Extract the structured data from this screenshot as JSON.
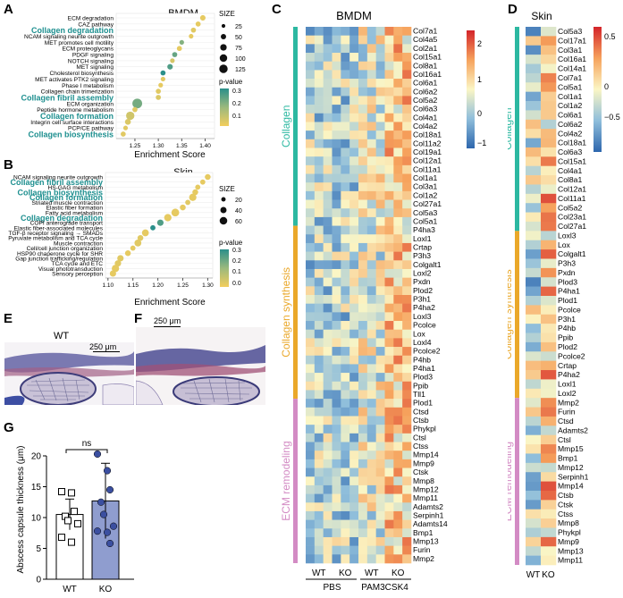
{
  "panels": {
    "A": {
      "letter": "A",
      "title": "BMDM",
      "xlabel": "Enrichment Score",
      "xticks": [
        "1.25",
        "1.30",
        "1.35",
        "1.40"
      ],
      "size_title": "SIZE",
      "size_ticks": [
        "25",
        "50",
        "75",
        "100",
        "125"
      ],
      "p_title": "p-value",
      "p_ticks": [
        "0.3",
        "0.2",
        "0.1"
      ]
    },
    "B": {
      "letter": "B",
      "title": "Skin",
      "xlabel": "Enrichment Score",
      "xticks": [
        "1.10",
        "1.15",
        "1.20",
        "1.25",
        "1.30"
      ],
      "size_title": "SIZE",
      "size_ticks": [
        "20",
        "40",
        "60"
      ],
      "p_title": "p-value",
      "p_ticks": [
        "0.3",
        "0.2",
        "0.1",
        "0.0"
      ]
    },
    "C": {
      "letter": "C",
      "title": "BMDM",
      "col_groups": [
        "WT",
        "KO",
        "WT",
        "KO"
      ],
      "treatments": [
        "PBS",
        "PAM3CSK4"
      ],
      "legend_ticks": [
        "2",
        "1",
        "0",
        "−1"
      ]
    },
    "D": {
      "letter": "D",
      "title": "Skin",
      "col_groups": [
        "WT",
        "KO"
      ],
      "legend_ticks": [
        "0.5",
        "0",
        "−0.5"
      ]
    },
    "E": {
      "letter": "E",
      "label": "WT",
      "scale": "250 μm"
    },
    "F": {
      "letter": "F",
      "label": "KO",
      "scale": "250 μm"
    },
    "G": {
      "letter": "G",
      "ylabel": "Abscess capsule thickness (μm)",
      "yticks": [
        "0",
        "5",
        "10",
        "15",
        "20"
      ],
      "sig": "ns"
    }
  },
  "section_labels": {
    "collagen": "Collagen",
    "synthesis": "Collagen synthesis",
    "remodeling": "ECM remodeling"
  },
  "colors": {
    "collagen": "#2cb8a1",
    "synthesis": "#eaa82a",
    "remodeling": "#d38bc4",
    "highlight": "#1d8f8f",
    "bar_ko": "#8f9dcf",
    "dot_ko": "#3b4fa0"
  },
  "chart_data": [
    {
      "type": "scatter",
      "panel": "A",
      "title": "BMDM",
      "xlabel": "Enrichment Score",
      "xlim": [
        1.21,
        1.42
      ],
      "categories": [
        "ECM degradation",
        "CAZ pathway",
        "Collagen degradation",
        "NCAM signaling neurite outgrowth",
        "MET promotes cell motility",
        "ECM proteoglycans",
        "PDGF signaling",
        "NOTCH signaling",
        "MET signaling",
        "Cholesterol biosynthesis",
        "MET activates PTK2 signaling",
        "Phase I metabolism",
        "Collagen chain trimerization",
        "Collagen fibril assembly",
        "ECM organization",
        "Peptide hormone metabolism",
        "Collagen formation",
        "Integrin cell surface interactions",
        "PCP/CE pathway",
        "Collagen biosynthesis"
      ],
      "highlighted": [
        "Collagen degradation",
        "Collagen fibril assembly",
        "Collagen formation",
        "Collagen biosynthesis"
      ],
      "x": [
        1.395,
        1.385,
        1.375,
        1.37,
        1.35,
        1.345,
        1.335,
        1.33,
        1.325,
        1.31,
        1.31,
        1.305,
        1.3,
        1.3,
        1.255,
        1.25,
        1.24,
        1.235,
        1.23,
        1.225
      ],
      "size": [
        35,
        30,
        30,
        25,
        25,
        30,
        30,
        25,
        35,
        30,
        25,
        25,
        30,
        30,
        110,
        30,
        80,
        40,
        25,
        30
      ],
      "pvalue": [
        0.02,
        0.02,
        0.03,
        0.02,
        0.18,
        0.02,
        0.22,
        0.05,
        0.25,
        0.3,
        0.03,
        0.02,
        0.03,
        0.04,
        0.2,
        0.03,
        0.06,
        0.04,
        0.03,
        0.03
      ],
      "legend": "right"
    },
    {
      "type": "scatter",
      "panel": "B",
      "title": "Skin",
      "xlabel": "Enrichment Score",
      "xlim": [
        1.095,
        1.31
      ],
      "categories": [
        "NCAM signaling neurite outgrowth",
        "Collagen fibril assembly",
        "HS-GAG metabolism",
        "Collagen biosynthesis",
        "Collagen formation",
        "Striated muscle contraction",
        "Elastic fiber formation",
        "Fatty acid metabolism",
        "Collagen degradation",
        "COPI anterograde transport",
        "Elastic fiber-associated molecules",
        "TGF-β receptor signaling → SMADs",
        "Pyruvate metabolism and TCA cycle",
        "Muscle contraction",
        "Cell/cell junction organization",
        "HSP90 chaperone cycle for SHR",
        "Gap junction trafficking/regulation",
        "TCA cycle and ETC",
        "Visual phototransduction",
        "Sensory perception"
      ],
      "highlighted": [
        "Collagen fibril assembly",
        "Collagen biosynthesis",
        "Collagen formation",
        "Collagen degradation"
      ],
      "x": [
        1.3,
        1.29,
        1.28,
        1.275,
        1.27,
        1.26,
        1.25,
        1.235,
        1.22,
        1.205,
        1.19,
        1.175,
        1.165,
        1.16,
        1.15,
        1.14,
        1.125,
        1.12,
        1.115,
        1.11
      ],
      "size": [
        25,
        20,
        20,
        25,
        40,
        20,
        25,
        45,
        40,
        30,
        20,
        35,
        25,
        35,
        20,
        25,
        30,
        30,
        40,
        30
      ],
      "pvalue": [
        0.02,
        0.02,
        0.02,
        0.02,
        0.02,
        0.03,
        0.02,
        0.02,
        0.02,
        0.25,
        0.35,
        0.02,
        0.03,
        0.03,
        0.02,
        0.02,
        0.03,
        0.03,
        0.02,
        0.02
      ],
      "legend": "right"
    },
    {
      "type": "heatmap",
      "panel": "C",
      "title": "BMDM",
      "columns": 12,
      "rows": [
        "Col7a1",
        "Col4a5",
        "Col2a1",
        "Col15a1",
        "Col8a1",
        "Col16a1",
        "Col6a1",
        "Col6a2",
        "Col5a2",
        "Col6a3",
        "Col4a1",
        "Col4a2",
        "Col18a1",
        "Col11a2",
        "Col19a1",
        "Col12a1",
        "Col11a1",
        "Col1a1",
        "Col3a1",
        "Col1a2",
        "Col27a1",
        "Col5a3",
        "Col5a1",
        "P4ha3",
        "Loxl1",
        "Crtap",
        "P3h3",
        "Colgalt1",
        "Loxl2",
        "Pxdn",
        "Plod2",
        "P3h1",
        "P4ha2",
        "Loxl3",
        "Pcolce",
        "Lox",
        "Loxl4",
        "Pcolce2",
        "P4hb",
        "P4ha1",
        "Plod3",
        "Ppib",
        "Tll1",
        "Plod1",
        "Ctsd",
        "Ctsb",
        "Phykpl",
        "Ctsl",
        "Ctss",
        "Mmp14",
        "Mmp9",
        "Ctsk",
        "Mmp8",
        "Mmp12",
        "Mmp11",
        "Adamts2",
        "Serpinh1",
        "Adamts14",
        "Bmp1",
        "Mmp13",
        "Furin",
        "Mmp2"
      ],
      "sections": [
        {
          "name": "Collagen",
          "start": 0,
          "end": 22
        },
        {
          "name": "Collagen synthesis",
          "start": 23,
          "end": 42
        },
        {
          "name": "ECM remodeling",
          "start": 43,
          "end": 61
        }
      ],
      "scale": [
        -1.5,
        2.5
      ]
    },
    {
      "type": "heatmap",
      "panel": "D",
      "title": "Skin",
      "columns": 2,
      "rows": [
        "Col5a3",
        "Col17a1",
        "Col3a1",
        "Col16a1",
        "Col14a1",
        "Col7a1",
        "Col5a1",
        "Col1a1",
        "Col1a2",
        "Col6a1",
        "Col6a2",
        "Col4a2",
        "Col18a1",
        "Col6a3",
        "Col15a1",
        "Col4a1",
        "Col8a1",
        "Col12a1",
        "Col11a1",
        "Col5a2",
        "Col23a1",
        "Col27a1",
        "Loxl3",
        "Lox",
        "Colgalt1",
        "P3h3",
        "Pxdn",
        "Plod3",
        "P4ha1",
        "Plod1",
        "Pcolce",
        "P3h1",
        "P4hb",
        "Ppib",
        "Plod2",
        "Pcolce2",
        "Crtap",
        "P4ha2",
        "Loxl1",
        "Loxl2",
        "Mmp2",
        "Furin",
        "Ctsd",
        "Adamts2",
        "Ctsl",
        "Mmp15",
        "Bmp1",
        "Mmp12",
        "Serpinh1",
        "Mmp14",
        "Ctsb",
        "Ctsk",
        "Ctss",
        "Mmp8",
        "Phykpl",
        "Mmp9",
        "Mmp13",
        "Mmp11"
      ],
      "sections": [
        {
          "name": "Collagen",
          "start": 0,
          "end": 21
        },
        {
          "name": "Collagen synthesis",
          "start": 22,
          "end": 39
        },
        {
          "name": "ECM remodeling",
          "start": 40,
          "end": 57
        }
      ],
      "scale": [
        -0.9,
        0.9
      ]
    },
    {
      "type": "bar",
      "panel": "G",
      "categories": [
        "WT",
        "KO"
      ],
      "values": [
        10.5,
        12.7
      ],
      "errors": [
        2.5,
        6.1
      ],
      "points": [
        [
          14.2,
          14.0,
          11.0,
          10.2,
          9.5,
          9.0,
          6.8,
          6.0
        ],
        [
          20.3,
          17.6,
          14.5,
          12.5,
          10.5,
          8.6,
          7.8,
          7.6,
          5.8
        ]
      ],
      "ylabel": "Abscess capsule thickness (μm)",
      "ylim": [
        0,
        20
      ],
      "annotation": "ns"
    }
  ]
}
